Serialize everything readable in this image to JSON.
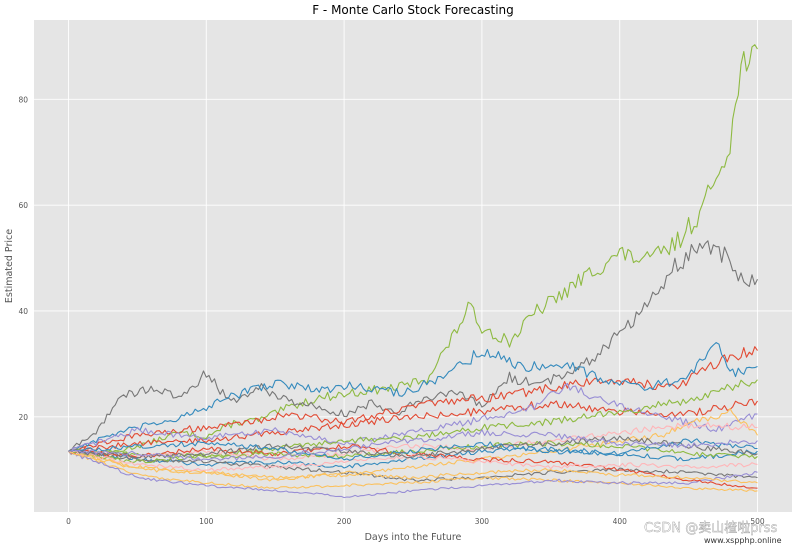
{
  "chart_data": {
    "type": "line",
    "title": "F - Monte Carlo Stock Forecasting",
    "xlabel": "Days into the Future",
    "ylabel": "Estimated Price",
    "xlim": [
      -25,
      525
    ],
    "ylim": [
      2,
      95
    ],
    "xticks": [
      0,
      100,
      200,
      300,
      400,
      500
    ],
    "yticks": [
      20,
      40,
      60,
      80
    ],
    "grid": true,
    "style": "ggplot",
    "series": [
      {
        "color": "#8EBA42",
        "x": [
          0,
          20,
          40,
          60,
          80,
          100,
          120,
          140,
          160,
          180,
          200,
          220,
          240,
          260,
          280,
          290,
          300,
          320,
          340,
          360,
          380,
          400,
          420,
          440,
          460,
          480,
          490,
          500
        ],
        "y": [
          13.5,
          12.6,
          13.8,
          15.2,
          17.0,
          16.3,
          18.8,
          19.5,
          21.8,
          23.5,
          24.3,
          25.0,
          25.6,
          27.2,
          35.5,
          40.8,
          37.0,
          34.2,
          40.0,
          43.5,
          47.5,
          50.8,
          49.5,
          52.5,
          59.2,
          72.0,
          88.0,
          89.5
        ]
      },
      {
        "color": "#777777",
        "x": [
          0,
          20,
          30,
          40,
          60,
          80,
          100,
          110,
          120,
          140,
          160,
          180,
          200,
          220,
          240,
          260,
          280,
          300,
          320,
          340,
          360,
          380,
          400,
          420,
          440,
          460,
          480,
          490,
          500
        ],
        "y": [
          13.5,
          17.0,
          21.0,
          24.0,
          25.5,
          23.5,
          28.2,
          25.0,
          23.0,
          25.5,
          23.0,
          22.0,
          20.5,
          22.5,
          21.0,
          23.8,
          24.5,
          22.0,
          27.5,
          26.0,
          28.0,
          31.0,
          36.0,
          41.0,
          48.5,
          52.5,
          50.0,
          44.5,
          46.0
        ]
      },
      {
        "color": "#E24A33",
        "x": [
          0,
          40,
          80,
          120,
          160,
          200,
          240,
          280,
          320,
          360,
          400,
          440,
          480,
          500
        ],
        "y": [
          13.5,
          16.0,
          17.5,
          18.5,
          20.5,
          19.0,
          21.5,
          23.0,
          24.0,
          26.0,
          27.0,
          25.5,
          31.5,
          32.5
        ]
      },
      {
        "color": "#348ABD",
        "x": [
          0,
          30,
          60,
          90,
          120,
          150,
          180,
          210,
          240,
          270,
          300,
          330,
          360,
          390,
          420,
          450,
          470,
          480,
          500
        ],
        "y": [
          13.5,
          16.5,
          18.5,
          20.5,
          24.0,
          26.5,
          25.0,
          26.0,
          24.5,
          27.0,
          32.5,
          29.5,
          30.0,
          27.0,
          25.5,
          27.5,
          34.0,
          28.0,
          29.5
        ]
      },
      {
        "color": "#E24A33",
        "x": [
          0,
          50,
          100,
          150,
          200,
          250,
          300,
          350,
          400,
          450,
          500
        ],
        "y": [
          13.5,
          15.0,
          15.5,
          17.0,
          18.5,
          20.0,
          21.0,
          22.5,
          21.0,
          20.5,
          23.0
        ]
      },
      {
        "color": "#988ED5",
        "x": [
          0,
          50,
          100,
          150,
          200,
          250,
          300,
          340,
          360,
          400,
          440,
          470,
          500
        ],
        "y": [
          13.5,
          17.5,
          16.0,
          17.5,
          15.0,
          17.0,
          19.5,
          22.0,
          26.0,
          22.0,
          19.5,
          17.5,
          20.5
        ]
      },
      {
        "color": "#8EBA42",
        "x": [
          0,
          50,
          100,
          150,
          200,
          250,
          300,
          350,
          400,
          450,
          500
        ],
        "y": [
          13.5,
          13.0,
          12.5,
          14.0,
          15.5,
          16.0,
          18.0,
          19.0,
          21.0,
          23.0,
          27.0
        ]
      },
      {
        "color": "#FBC15E",
        "x": [
          0,
          50,
          100,
          150,
          200,
          250,
          300,
          350,
          400,
          430,
          460,
          480,
          500
        ],
        "y": [
          13.5,
          10.5,
          9.5,
          8.5,
          9.0,
          10.5,
          12.0,
          13.5,
          15.5,
          16.5,
          19.5,
          21.0,
          16.5
        ]
      },
      {
        "color": "#FFB5B8",
        "x": [
          0,
          50,
          100,
          150,
          200,
          250,
          300,
          350,
          400,
          450,
          500
        ],
        "y": [
          13.5,
          12.5,
          13.5,
          12.0,
          13.0,
          14.5,
          14.0,
          15.5,
          17.0,
          18.5,
          18.0
        ]
      },
      {
        "color": "#348ABD",
        "x": [
          0,
          50,
          100,
          150,
          200,
          250,
          300,
          350,
          400,
          450,
          500
        ],
        "y": [
          13.5,
          12.0,
          11.0,
          11.5,
          10.5,
          12.0,
          13.5,
          14.0,
          13.0,
          12.0,
          13.5
        ]
      },
      {
        "color": "#777777",
        "x": [
          0,
          50,
          100,
          150,
          200,
          250,
          300,
          350,
          400,
          450,
          500
        ],
        "y": [
          13.5,
          12.0,
          11.5,
          10.5,
          9.5,
          8.0,
          8.5,
          9.5,
          10.0,
          9.5,
          8.5
        ]
      },
      {
        "color": "#FBC15E",
        "x": [
          0,
          50,
          100,
          150,
          200,
          250,
          300,
          350,
          400,
          450,
          500
        ],
        "y": [
          13.5,
          9.0,
          7.5,
          6.5,
          7.0,
          7.5,
          8.5,
          8.0,
          7.5,
          6.5,
          6.0
        ]
      },
      {
        "color": "#988ED5",
        "x": [
          0,
          50,
          100,
          150,
          180,
          200,
          250,
          300,
          350,
          400,
          450,
          500
        ],
        "y": [
          13.5,
          8.5,
          7.0,
          6.0,
          5.5,
          4.8,
          6.0,
          7.0,
          8.0,
          7.5,
          7.5,
          9.5
        ]
      },
      {
        "color": "#E24A33",
        "x": [
          0,
          50,
          100,
          150,
          200,
          250,
          300,
          350,
          400,
          450,
          500
        ],
        "y": [
          13.5,
          12.5,
          14.0,
          13.0,
          14.5,
          13.0,
          12.0,
          11.5,
          10.0,
          8.0,
          6.5
        ]
      },
      {
        "color": "#8EBA42",
        "x": [
          0,
          50,
          100,
          150,
          200,
          250,
          300,
          350,
          400,
          450,
          500
        ],
        "y": [
          13.5,
          11.5,
          12.5,
          13.0,
          12.5,
          13.5,
          14.5,
          15.0,
          14.5,
          13.0,
          12.5
        ]
      },
      {
        "color": "#FFB5B8",
        "x": [
          0,
          50,
          100,
          150,
          200,
          250,
          300,
          350,
          400,
          450,
          500
        ],
        "y": [
          13.5,
          11.0,
          10.0,
          10.5,
          11.5,
          12.5,
          11.5,
          10.5,
          11.0,
          10.5,
          11.0
        ]
      },
      {
        "color": "#777777",
        "x": [
          0,
          50,
          100,
          150,
          200,
          250,
          300,
          350,
          400,
          450,
          500
        ],
        "y": [
          13.5,
          12.5,
          13.0,
          14.5,
          13.5,
          12.5,
          14.0,
          15.0,
          16.0,
          14.5,
          13.0
        ]
      },
      {
        "color": "#FBC15E",
        "x": [
          0,
          50,
          100,
          150,
          200,
          250,
          300,
          350,
          400,
          450,
          500
        ],
        "y": [
          13.5,
          10.0,
          9.5,
          8.0,
          9.5,
          8.5,
          9.5,
          10.0,
          9.0,
          8.5,
          7.5
        ]
      },
      {
        "color": "#348ABD",
        "x": [
          0,
          50,
          100,
          150,
          200,
          250,
          300,
          350,
          400,
          450,
          500
        ],
        "y": [
          13.5,
          14.5,
          15.0,
          14.0,
          12.0,
          13.5,
          15.0,
          13.5,
          13.0,
          15.5,
          14.0
        ]
      },
      {
        "color": "#988ED5",
        "x": [
          0,
          50,
          100,
          150,
          200,
          250,
          300,
          350,
          400,
          450,
          500
        ],
        "y": [
          13.5,
          13.0,
          12.0,
          12.5,
          14.0,
          15.5,
          17.0,
          16.5,
          15.0,
          14.5,
          15.5
        ]
      }
    ]
  },
  "watermark": {
    "brand": "CSDN @卖山楂啦prss",
    "site": "www.xspphp.online"
  }
}
